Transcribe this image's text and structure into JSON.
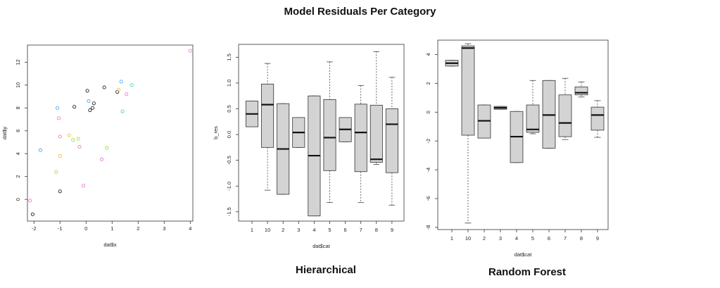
{
  "title": "Model Residuals Per Category",
  "chart_data": [
    {
      "type": "scatter",
      "xlabel": "dat$x",
      "ylabel": "dat$y",
      "xlim": [
        -2.25,
        4.1
      ],
      "ylim": [
        -1.9,
        13.5
      ],
      "xticks": [
        "-2",
        "-1",
        "0",
        "1",
        "2",
        "3",
        "4"
      ],
      "yticks": [
        "0",
        "2",
        "4",
        "6",
        "8",
        "10",
        "12"
      ],
      "points": [
        {
          "x": -2.15,
          "y": -0.1,
          "color": "#e87ad8"
        },
        {
          "x": -2.05,
          "y": -1.3,
          "color": "#222222"
        },
        {
          "x": -1.75,
          "y": 4.3,
          "color": "#4aa8f0"
        },
        {
          "x": -1.15,
          "y": 2.4,
          "color": "#9ad84a"
        },
        {
          "x": -1.1,
          "y": 8.0,
          "color": "#4aa8f0"
        },
        {
          "x": -1.05,
          "y": 7.1,
          "color": "#e87ad8"
        },
        {
          "x": -1.0,
          "y": 5.5,
          "color": "#e87ad8"
        },
        {
          "x": -1.0,
          "y": 3.8,
          "color": "#f0c040"
        },
        {
          "x": -1.0,
          "y": 0.7,
          "color": "#222222"
        },
        {
          "x": -0.65,
          "y": 5.6,
          "color": "#f0c040"
        },
        {
          "x": -0.5,
          "y": 5.2,
          "color": "#9ad84a"
        },
        {
          "x": -0.45,
          "y": 8.1,
          "color": "#222222"
        },
        {
          "x": -0.3,
          "y": 5.3,
          "color": "#9ad84a"
        },
        {
          "x": -0.25,
          "y": 4.6,
          "color": "#e87ad8"
        },
        {
          "x": -0.1,
          "y": 1.2,
          "color": "#e87ad8"
        },
        {
          "x": 0.05,
          "y": 9.5,
          "color": "#222222"
        },
        {
          "x": 0.1,
          "y": 8.6,
          "color": "#4aa8f0"
        },
        {
          "x": 0.15,
          "y": 7.8,
          "color": "#222222"
        },
        {
          "x": 0.25,
          "y": 8.0,
          "color": "#222222"
        },
        {
          "x": 0.3,
          "y": 8.4,
          "color": "#222222"
        },
        {
          "x": 0.6,
          "y": 3.5,
          "color": "#e87ad8"
        },
        {
          "x": 0.7,
          "y": 9.8,
          "color": "#222222"
        },
        {
          "x": 0.8,
          "y": 4.5,
          "color": "#9ad84a"
        },
        {
          "x": 1.2,
          "y": 9.4,
          "color": "#222222"
        },
        {
          "x": 1.25,
          "y": 9.6,
          "color": "#f0c040"
        },
        {
          "x": 1.35,
          "y": 10.3,
          "color": "#4aa8f0"
        },
        {
          "x": 1.4,
          "y": 7.7,
          "color": "#4ad8b0"
        },
        {
          "x": 1.55,
          "y": 9.2,
          "color": "#e87ad8"
        },
        {
          "x": 1.75,
          "y": 10.0,
          "color": "#4ad8b0"
        },
        {
          "x": 4.0,
          "y": 13.0,
          "color": "#e87ad8"
        }
      ]
    },
    {
      "type": "box",
      "subtitle": "Hierarchical",
      "xlabel": "dat$cat",
      "ylabel": "b_res",
      "ylim": [
        -1.68,
        1.75
      ],
      "yticks": [
        "-1.5",
        "-1.0",
        "-0.5",
        "0.0",
        "0.5",
        "1.0",
        "1.5"
      ],
      "categories": [
        "1",
        "10",
        "2",
        "3",
        "4",
        "5",
        "6",
        "7",
        "8",
        "9"
      ],
      "boxes": [
        {
          "min": 0.15,
          "q1": 0.15,
          "median": 0.4,
          "q3": 0.65,
          "max": 0.65
        },
        {
          "min": -1.08,
          "q1": -0.25,
          "median": 0.58,
          "q3": 0.98,
          "max": 1.38
        },
        {
          "min": -1.16,
          "q1": -1.16,
          "median": -0.28,
          "q3": 0.6,
          "max": 0.6
        },
        {
          "min": -0.25,
          "q1": -0.25,
          "median": 0.04,
          "q3": 0.33,
          "max": 0.33
        },
        {
          "min": -1.58,
          "q1": -1.58,
          "median": -0.41,
          "q3": 0.75,
          "max": 0.75
        },
        {
          "min": -1.32,
          "q1": -0.7,
          "median": -0.06,
          "q3": 0.68,
          "max": 1.41
        },
        {
          "min": -0.14,
          "q1": -0.14,
          "median": 0.1,
          "q3": 0.33,
          "max": 0.33
        },
        {
          "min": -1.32,
          "q1": -0.72,
          "median": 0.04,
          "q3": 0.59,
          "max": 0.95
        },
        {
          "min": -0.58,
          "q1": -0.54,
          "median": -0.48,
          "q3": 0.57,
          "max": 1.61
        },
        {
          "min": -1.37,
          "q1": -0.74,
          "median": 0.2,
          "q3": 0.5,
          "max": 1.11
        }
      ]
    },
    {
      "type": "box",
      "subtitle": "Random Forest",
      "xlabel": "dat$cat",
      "ylabel": "",
      "ylim": [
        -8.15,
        5.0
      ],
      "yticks": [
        "-8",
        "-6",
        "-4",
        "-2",
        "0",
        "2",
        "4"
      ],
      "categories": [
        "1",
        "10",
        "2",
        "3",
        "4",
        "5",
        "6",
        "7",
        "8",
        "9"
      ],
      "boxes": [
        {
          "min": 3.2,
          "q1": 3.2,
          "median": 3.4,
          "q3": 3.6,
          "max": 3.6
        },
        {
          "min": -7.7,
          "q1": -1.6,
          "median": 4.45,
          "q3": 4.6,
          "max": 4.75
        },
        {
          "min": -1.8,
          "q1": -1.8,
          "median": -0.6,
          "q3": 0.5,
          "max": 0.5
        },
        {
          "min": 0.2,
          "q1": 0.2,
          "median": 0.3,
          "q3": 0.4,
          "max": 0.4
        },
        {
          "min": -3.5,
          "q1": -3.5,
          "median": -1.7,
          "q3": 0.05,
          "max": 0.05
        },
        {
          "min": -1.5,
          "q1": -1.4,
          "median": -1.2,
          "q3": 0.5,
          "max": 2.2
        },
        {
          "min": -2.5,
          "q1": -2.5,
          "median": -0.2,
          "q3": 2.2,
          "max": 2.2
        },
        {
          "min": -1.9,
          "q1": -1.7,
          "median": -0.75,
          "q3": 1.2,
          "max": 2.35
        },
        {
          "min": 1.05,
          "q1": 1.2,
          "median": 1.35,
          "q3": 1.75,
          "max": 2.1
        },
        {
          "min": -1.75,
          "q1": -1.25,
          "median": -0.2,
          "q3": 0.35,
          "max": 0.8
        }
      ]
    }
  ]
}
